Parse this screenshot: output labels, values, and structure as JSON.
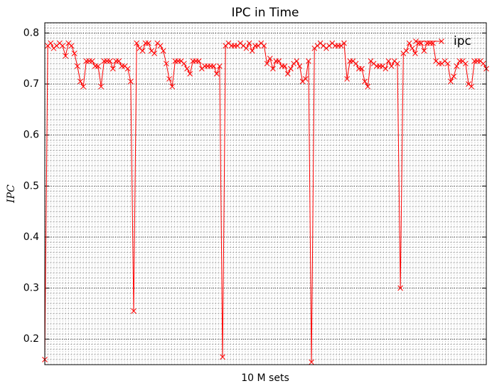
{
  "chart_data": {
    "type": "line",
    "title": "IPC in Time",
    "xlabel": "10 M sets",
    "ylabel": "IPC",
    "series": [
      {
        "name": "ipc",
        "color": "#ff0000",
        "values": [
          0.16,
          0.775,
          0.78,
          0.77,
          0.775,
          0.78,
          0.775,
          0.755,
          0.78,
          0.775,
          0.76,
          0.735,
          0.705,
          0.695,
          0.745,
          0.745,
          0.745,
          0.735,
          0.735,
          0.695,
          0.745,
          0.745,
          0.745,
          0.73,
          0.745,
          0.745,
          0.735,
          0.735,
          0.73,
          0.705,
          0.255,
          0.78,
          0.77,
          0.765,
          0.78,
          0.78,
          0.765,
          0.76,
          0.78,
          0.775,
          0.765,
          0.74,
          0.71,
          0.695,
          0.745,
          0.745,
          0.745,
          0.74,
          0.73,
          0.72,
          0.745,
          0.745,
          0.745,
          0.73,
          0.735,
          0.735,
          0.735,
          0.735,
          0.72,
          0.735,
          0.165,
          0.775,
          0.78,
          0.775,
          0.775,
          0.775,
          0.78,
          0.775,
          0.77,
          0.78,
          0.765,
          0.775,
          0.775,
          0.78,
          0.775,
          0.74,
          0.75,
          0.73,
          0.745,
          0.745,
          0.735,
          0.735,
          0.72,
          0.73,
          0.74,
          0.745,
          0.735,
          0.705,
          0.71,
          0.745,
          0.155,
          0.77,
          0.775,
          0.78,
          0.775,
          0.77,
          0.775,
          0.78,
          0.775,
          0.775,
          0.775,
          0.78,
          0.71,
          0.745,
          0.745,
          0.74,
          0.73,
          0.73,
          0.705,
          0.695,
          0.745,
          0.74,
          0.735,
          0.735,
          0.735,
          0.73,
          0.745,
          0.735,
          0.745,
          0.74,
          0.3,
          0.76,
          0.765,
          0.78,
          0.77,
          0.76,
          0.78,
          0.78,
          0.765,
          0.78,
          0.78,
          0.78,
          0.745,
          0.74,
          0.74,
          0.745,
          0.74,
          0.705,
          0.715,
          0.735,
          0.745,
          0.745,
          0.74,
          0.7,
          0.695,
          0.745,
          0.745,
          0.745,
          0.74,
          0.73
        ]
      }
    ],
    "ylim": [
      0.15,
      0.82
    ],
    "yticks": [
      0.2,
      0.3,
      0.4,
      0.5,
      0.6,
      0.7,
      0.8
    ],
    "grid": true,
    "legend": "upper right"
  }
}
